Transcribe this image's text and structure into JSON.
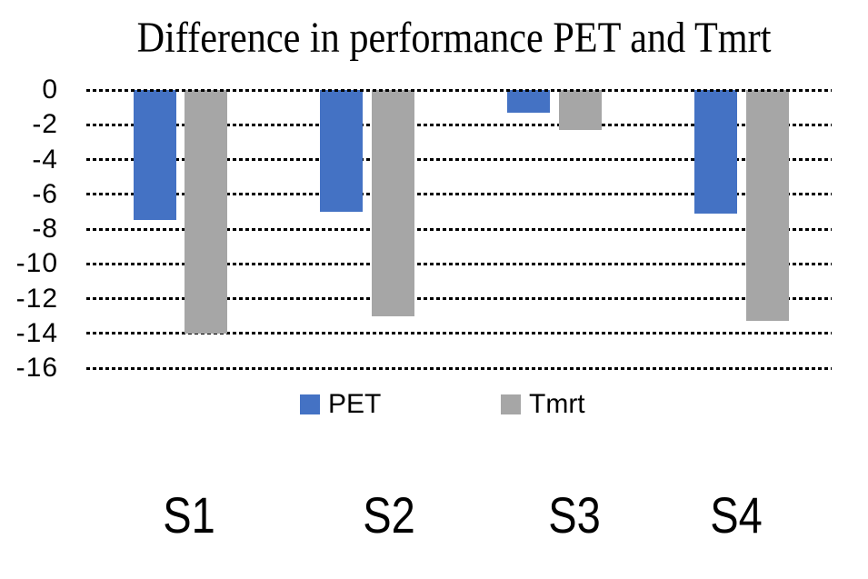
{
  "chart_data": {
    "type": "bar",
    "title": "Difference in performance PET and Tmrt",
    "categories": [
      "S1",
      "S2",
      "S3",
      "S4"
    ],
    "series": [
      {
        "name": "PET",
        "color": "#4472C4",
        "values": [
          -7.5,
          -7.0,
          -1.3,
          -7.1
        ]
      },
      {
        "name": "Tmrt",
        "color": "#A6A6A6",
        "values": [
          -14.0,
          -13.0,
          -2.3,
          -13.3
        ]
      }
    ],
    "y_ticks": [
      0,
      -2,
      -4,
      -6,
      -8,
      -10,
      -12,
      -14,
      -16
    ],
    "ylim": [
      -16,
      0
    ],
    "xlabel": "",
    "ylabel": "",
    "gridlines": "dotted-horizontal",
    "legend_position": "bottom-center",
    "colors": {
      "background": "#ffffff",
      "grid": "#000000",
      "text": "#000000"
    }
  }
}
